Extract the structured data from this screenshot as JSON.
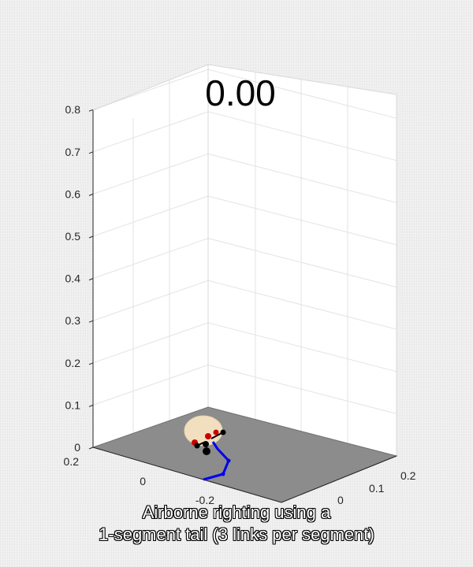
{
  "chart_data": {
    "type": "3d-scene",
    "timer_text": "0.00",
    "zlim": [
      0,
      0.85
    ],
    "z_ticks": [
      "0",
      "0.1",
      "0.2",
      "0.3",
      "0.4",
      "0.5",
      "0.6",
      "0.7",
      "0.8"
    ],
    "left_axis_ticks": [
      "0.2",
      "0",
      "-0.2"
    ],
    "right_axis_ticks": [
      "0",
      "0.1",
      "0.2"
    ],
    "grid": true,
    "ground_color": "#8c8c8c",
    "body_color": "#f2dfbf",
    "tail_color": "#0000ee",
    "marker_color": "#cc0000",
    "tail_links": 3
  },
  "caption": {
    "line1": "Airborne righting using a",
    "line2": "1-segment tail (3 links per segment)"
  }
}
